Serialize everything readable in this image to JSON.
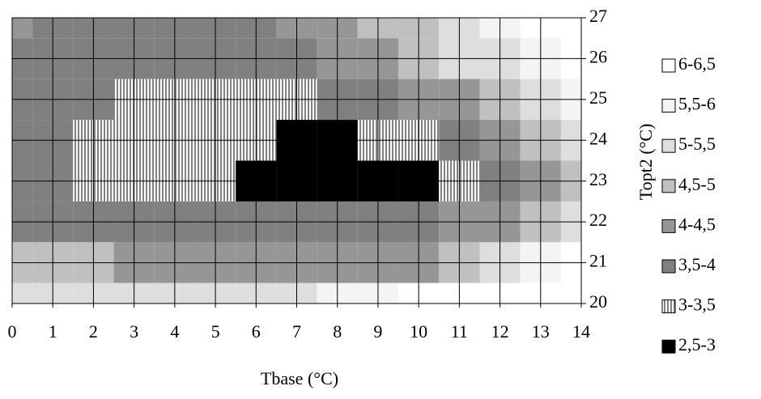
{
  "chart_data": {
    "type": "contour",
    "xlabel": "Tbase (°C)",
    "ylabel": "Topt2 (°C)",
    "xlim": [
      0,
      14
    ],
    "ylim": [
      20,
      27
    ],
    "xticks": [
      0,
      1,
      2,
      3,
      4,
      5,
      6,
      7,
      8,
      9,
      10,
      11,
      12,
      13,
      14
    ],
    "yticks": [
      20,
      21,
      22,
      23,
      24,
      25,
      26,
      27
    ],
    "grid": true,
    "x": [
      0,
      1,
      2,
      3,
      4,
      5,
      6,
      7,
      8,
      9,
      10,
      11,
      12,
      13,
      14
    ],
    "y": [
      27,
      26,
      25,
      24,
      23,
      22,
      21,
      20
    ],
    "z": [
      [
        4.2,
        3.8,
        3.8,
        3.8,
        3.8,
        3.8,
        3.9,
        4.2,
        4.4,
        4.6,
        4.8,
        5.2,
        5.7,
        6.0,
        6.3
      ],
      [
        3.8,
        3.8,
        3.8,
        3.8,
        3.8,
        3.8,
        3.8,
        3.9,
        4.1,
        4.3,
        4.6,
        5.0,
        5.4,
        5.8,
        6.2
      ],
      [
        3.8,
        3.7,
        3.6,
        3.4,
        3.3,
        3.3,
        3.3,
        3.4,
        3.5,
        3.7,
        4.1,
        4.4,
        4.8,
        5.3,
        5.8
      ],
      [
        3.6,
        3.5,
        3.3,
        3.2,
        3.2,
        3.2,
        3.1,
        2.9,
        2.9,
        3.1,
        3.3,
        3.6,
        4.1,
        4.6,
        5.2
      ],
      [
        3.6,
        3.5,
        3.4,
        3.3,
        3.2,
        3.2,
        2.9,
        2.8,
        2.8,
        2.8,
        2.9,
        3.3,
        3.6,
        4.2,
        4.7
      ],
      [
        3.8,
        3.7,
        3.7,
        3.6,
        3.6,
        3.6,
        3.6,
        3.6,
        3.6,
        3.7,
        3.8,
        4.0,
        4.3,
        4.5,
        5.0
      ],
      [
        4.6,
        4.5,
        4.5,
        4.3,
        4.2,
        4.1,
        4.1,
        4.1,
        4.1,
        4.2,
        4.4,
        4.7,
        5.2,
        5.7,
        6.2
      ],
      [
        5.3,
        5.3,
        5.3,
        5.3,
        5.3,
        5.3,
        5.3,
        5.4,
        5.6,
        5.8,
        6.0,
        6.2,
        6.4,
        6.4,
        6.4
      ]
    ],
    "levels": [
      {
        "value": [
          6,
          6.5
        ],
        "label": "6-6,5",
        "color": "#ffffff"
      },
      {
        "value": [
          5.5,
          6
        ],
        "label": "5,5-6",
        "color": "#f4f4f4"
      },
      {
        "value": [
          5,
          5.5
        ],
        "label": "5-5,5",
        "color": "#dedede"
      },
      {
        "value": [
          4.5,
          5
        ],
        "label": "4,5-5",
        "color": "#c0c0c0"
      },
      {
        "value": [
          4,
          4.5
        ],
        "label": "4-4,5",
        "color": "#969696"
      },
      {
        "value": [
          3.5,
          4
        ],
        "label": "3,5-4",
        "color": "#808080"
      },
      {
        "value": [
          3,
          3.5
        ],
        "label": "3-3,5",
        "color": "#a8a8a8",
        "pattern": "vertical-lines"
      },
      {
        "value": [
          2.5,
          3
        ],
        "label": "2,5-3",
        "color": "#000000"
      }
    ],
    "legend": "right"
  }
}
